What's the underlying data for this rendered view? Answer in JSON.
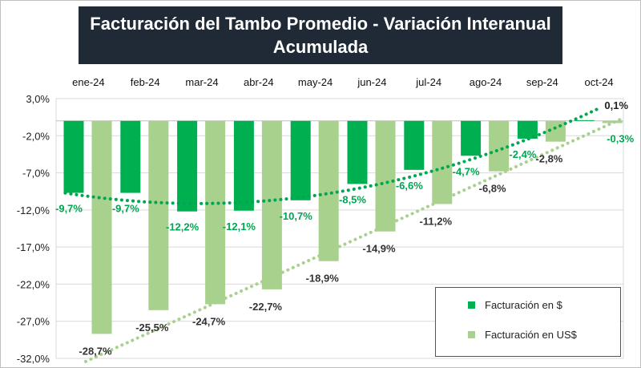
{
  "title_line1": "Facturación del Tambo Promedio - Variación Interanual",
  "title_line2": "Acumulada",
  "colors": {
    "pesos": "#00b050",
    "usd": "#a9d18e",
    "pesos_label": "#00a651",
    "usd_label": "#333333"
  },
  "chart_data": {
    "type": "bar",
    "categories": [
      "ene-24",
      "feb-24",
      "mar-24",
      "abr-24",
      "may-24",
      "jun-24",
      "jul-24",
      "ago-24",
      "sep-24",
      "oct-24"
    ],
    "series": [
      {
        "name": "Facturación en $",
        "values": [
          -9.7,
          -9.7,
          -12.2,
          -12.1,
          -10.7,
          -8.5,
          -6.6,
          -4.7,
          -2.4,
          0.1
        ],
        "labels": [
          "-9,7%",
          "-9,7%",
          "-12,2%",
          "-12,1%",
          "-10,7%",
          "-8,5%",
          "-6,6%",
          "-4,7%",
          "-2,4%",
          "0,1%"
        ]
      },
      {
        "name": "Facturación en US$",
        "values": [
          -28.7,
          -25.5,
          -24.7,
          -22.7,
          -18.9,
          -14.9,
          -11.2,
          -6.8,
          -2.8,
          -0.3
        ],
        "labels": [
          "-28,7%",
          "-25,5%",
          "-24,7%",
          "-22,7%",
          "-18,9%",
          "-14,9%",
          "-11,2%",
          "-6,8%",
          "-2,8%",
          "-0,3%"
        ]
      }
    ],
    "ylim": [
      -32,
      3
    ],
    "yticks": [
      3,
      -2,
      -7,
      -12,
      -17,
      -22,
      -27,
      -32
    ],
    "ytick_labels": [
      "3,0%",
      "-2,0%",
      "-7,0%",
      "-12,0%",
      "-17,0%",
      "-22,0%",
      "-27,0%",
      "-32,0%"
    ],
    "trendlines": {
      "pesos": "polynomial",
      "usd": "linear"
    },
    "grid": true,
    "legend": "bottom-right",
    "xaxis_position": "top"
  }
}
